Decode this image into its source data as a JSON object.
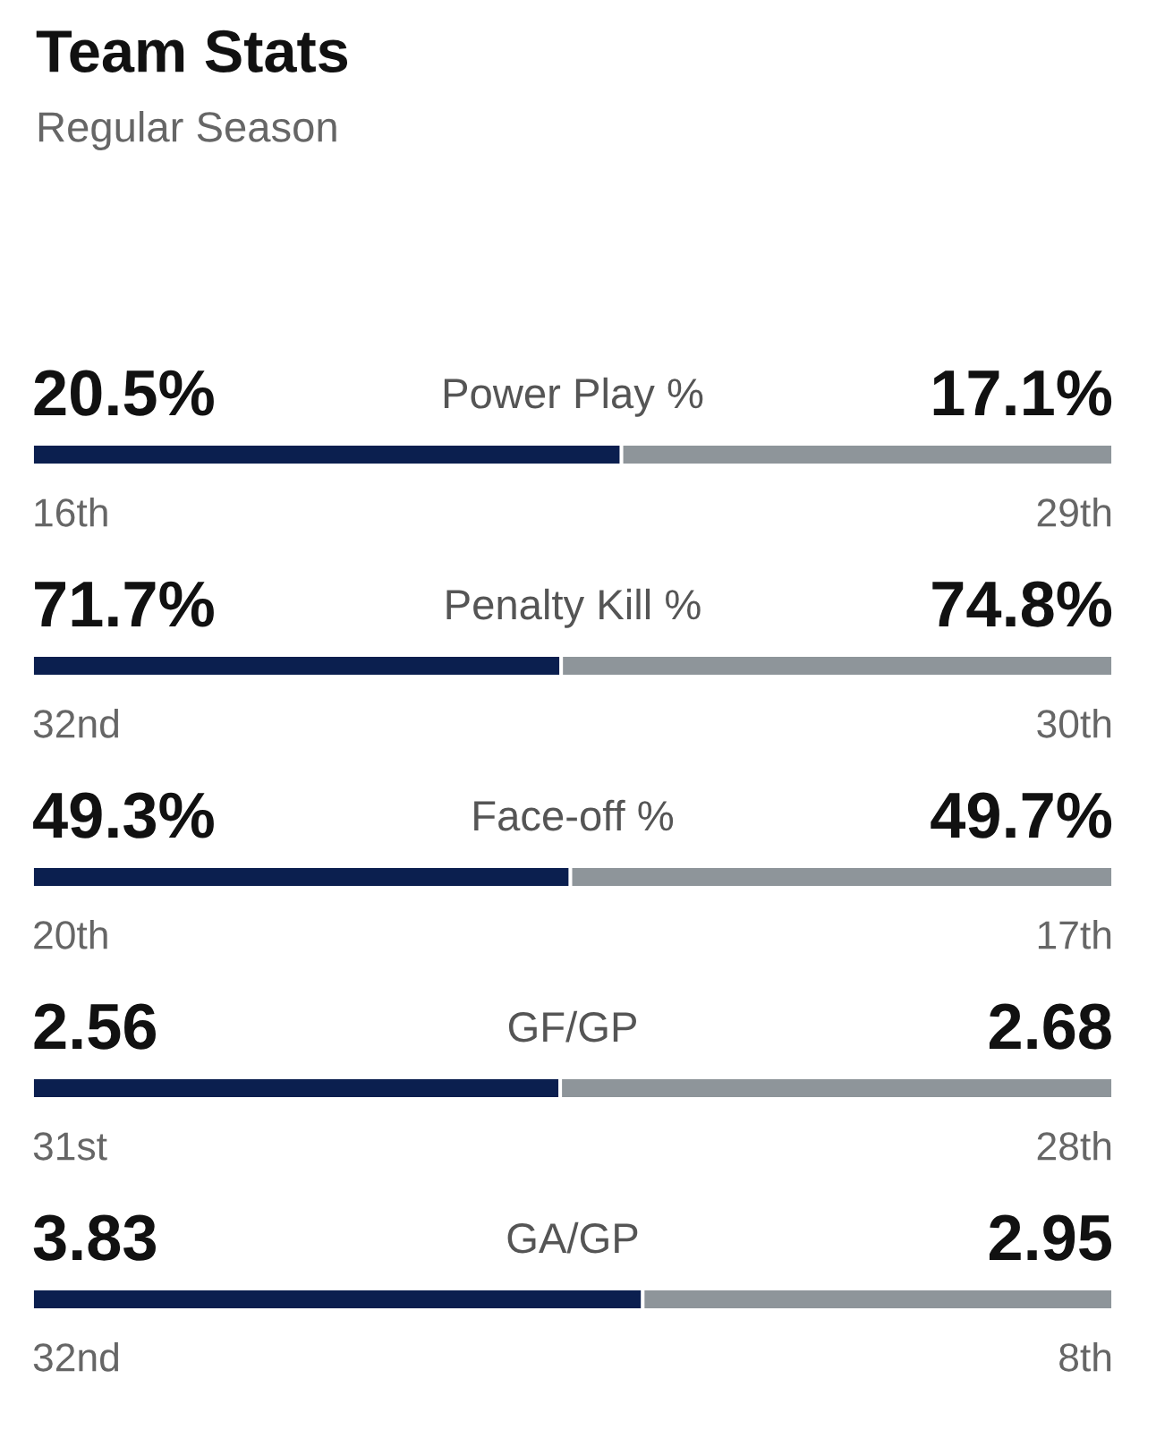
{
  "chart_data": [
    {
      "type": "bar",
      "title": "Team Stats",
      "subtitle": "Regular Season",
      "orientation": "horizontal",
      "stacked": true,
      "tick_labels": false,
      "legend": false,
      "categories": [
        "Power Play %"
      ],
      "series": [
        {
          "color": "#0b1f4f",
          "values": [
            20.5
          ],
          "value_labels": [
            "20.5%"
          ]
        },
        {
          "color": "#8e959a",
          "values": [
            17.1
          ],
          "value_labels": [
            "17.1%"
          ]
        }
      ],
      "annotations": [
        "16th",
        "29th"
      ]
    },
    {
      "type": "bar",
      "orientation": "horizontal",
      "stacked": true,
      "tick_labels": false,
      "legend": false,
      "categories": [
        "Penalty Kill %"
      ],
      "series": [
        {
          "color": "#0b1f4f",
          "values": [
            71.7
          ],
          "value_labels": [
            "71.7%"
          ]
        },
        {
          "color": "#8e959a",
          "values": [
            74.8
          ],
          "value_labels": [
            "74.8%"
          ]
        }
      ],
      "annotations": [
        "32nd",
        "30th"
      ]
    },
    {
      "type": "bar",
      "orientation": "horizontal",
      "stacked": true,
      "tick_labels": false,
      "legend": false,
      "categories": [
        "Face-off %"
      ],
      "series": [
        {
          "color": "#0b1f4f",
          "values": [
            49.3
          ],
          "value_labels": [
            "49.3%"
          ]
        },
        {
          "color": "#8e959a",
          "values": [
            49.7
          ],
          "value_labels": [
            "49.7%"
          ]
        }
      ],
      "annotations": [
        "20th",
        "17th"
      ]
    },
    {
      "type": "bar",
      "orientation": "horizontal",
      "stacked": true,
      "tick_labels": false,
      "legend": false,
      "categories": [
        "GF/GP"
      ],
      "series": [
        {
          "color": "#0b1f4f",
          "values": [
            2.56
          ],
          "value_labels": [
            "2.56"
          ]
        },
        {
          "color": "#8e959a",
          "values": [
            2.68
          ],
          "value_labels": [
            "2.68"
          ]
        }
      ],
      "annotations": [
        "31st",
        "28th"
      ]
    },
    {
      "type": "bar",
      "orientation": "horizontal",
      "stacked": true,
      "tick_labels": false,
      "legend": false,
      "categories": [
        "GA/GP"
      ],
      "series": [
        {
          "color": "#0b1f4f",
          "values": [
            3.83
          ],
          "value_labels": [
            "3.83"
          ]
        },
        {
          "color": "#8e959a",
          "values": [
            2.95
          ],
          "value_labels": [
            "2.95"
          ]
        }
      ],
      "annotations": [
        "32nd",
        "8th"
      ]
    }
  ]
}
